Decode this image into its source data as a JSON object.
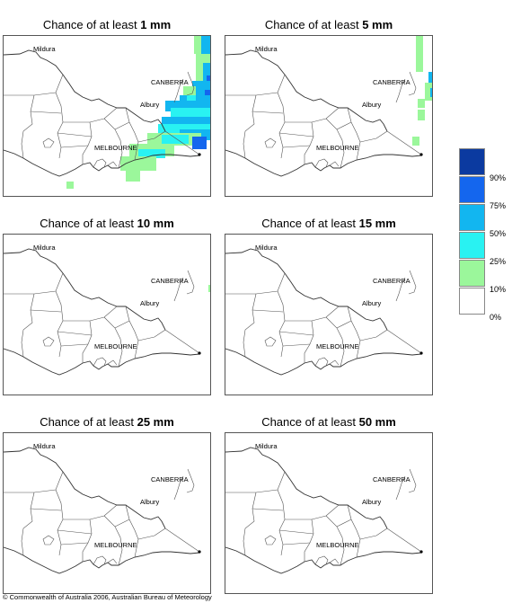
{
  "panels": [
    {
      "title_prefix": "Chance of at least ",
      "amount": "1 mm"
    },
    {
      "title_prefix": "Chance of at least ",
      "amount": "5 mm"
    },
    {
      "title_prefix": "Chance of at least ",
      "amount": "10 mm"
    },
    {
      "title_prefix": "Chance of at least ",
      "amount": "15 mm"
    },
    {
      "title_prefix": "Chance of at least ",
      "amount": "25 mm"
    },
    {
      "title_prefix": "Chance of at least ",
      "amount": "50 mm"
    }
  ],
  "places": {
    "mildura": "Mildura",
    "canberra": "CANBERRA",
    "albury": "Albury",
    "melbourne": "MELBOURNE"
  },
  "legend": {
    "labels": [
      "90%",
      "75%",
      "50%",
      "25%",
      "10%",
      "0%"
    ],
    "colors": [
      "#0b3aa0",
      "#1466ee",
      "#12b6f0",
      "#29f2f2",
      "#9bf79b",
      "#ffffff"
    ]
  },
  "copyright": "© Commonwealth of Australia 2006, Australian Bureau of Meteorology"
}
